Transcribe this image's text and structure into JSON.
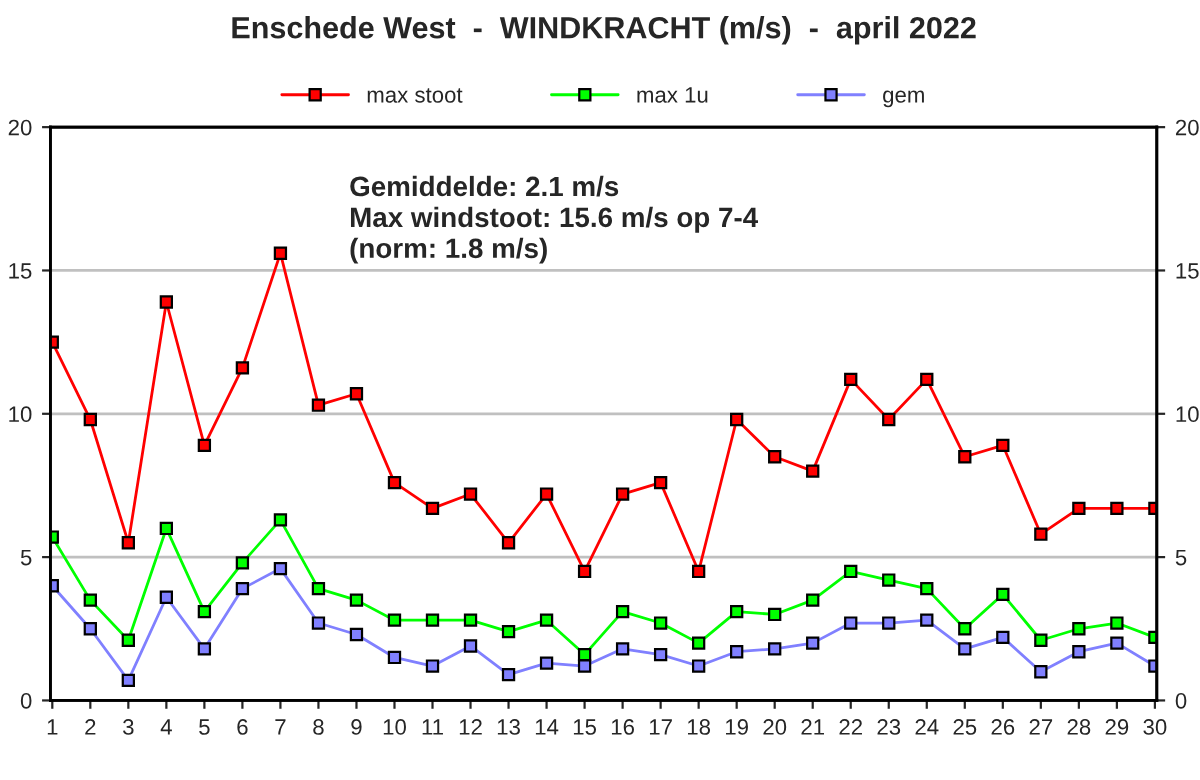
{
  "chart_data": {
    "type": "line",
    "title": "Enschede West  -  WINDKRACHT (m/s)  -  april 2022",
    "categories": [
      "1",
      "2",
      "3",
      "4",
      "5",
      "6",
      "7",
      "8",
      "9",
      "10",
      "11",
      "12",
      "13",
      "14",
      "15",
      "16",
      "17",
      "18",
      "19",
      "20",
      "21",
      "22",
      "23",
      "24",
      "25",
      "26",
      "27",
      "28",
      "29",
      "30"
    ],
    "series": [
      {
        "name": "max stoot",
        "color": "#ff0000",
        "values": [
          12.5,
          9.8,
          5.5,
          13.9,
          8.9,
          11.6,
          15.6,
          10.3,
          10.7,
          7.6,
          6.7,
          7.2,
          5.5,
          7.2,
          4.5,
          7.2,
          7.6,
          4.5,
          9.8,
          8.5,
          8.0,
          11.2,
          9.8,
          11.2,
          8.5,
          8.9,
          5.8,
          6.7,
          6.7,
          6.7
        ]
      },
      {
        "name": "max 1u",
        "color": "#00ff00",
        "values": [
          5.7,
          3.5,
          2.1,
          6.0,
          3.1,
          4.8,
          6.3,
          3.9,
          3.5,
          2.8,
          2.8,
          2.8,
          2.4,
          2.8,
          1.6,
          3.1,
          2.7,
          2.0,
          3.1,
          3.0,
          3.5,
          4.5,
          4.2,
          3.9,
          2.5,
          3.7,
          2.1,
          2.5,
          2.7,
          2.2
        ]
      },
      {
        "name": "gem",
        "color": "#8080ff",
        "values": [
          4.0,
          2.5,
          0.7,
          3.6,
          1.8,
          3.9,
          4.6,
          2.7,
          2.3,
          1.5,
          1.2,
          1.9,
          0.9,
          1.3,
          1.2,
          1.8,
          1.6,
          1.2,
          1.7,
          1.8,
          2.0,
          2.7,
          2.7,
          2.8,
          1.8,
          2.2,
          1.0,
          1.7,
          2.0,
          1.2
        ]
      }
    ],
    "ylim": [
      0,
      20
    ],
    "yticks": [
      0,
      5,
      10,
      15,
      20
    ],
    "y2lim": [
      0,
      20
    ],
    "y2ticks": [
      0,
      5,
      10,
      15,
      20
    ],
    "annotations": [
      "Gemiddelde: 2.1 m/s\nMax windstoot: 15.6 m/s op 7-4\n(norm: 1.8 m/s)"
    ],
    "grid": "y",
    "legend": "top",
    "marker": "square",
    "line_style": "solid"
  }
}
